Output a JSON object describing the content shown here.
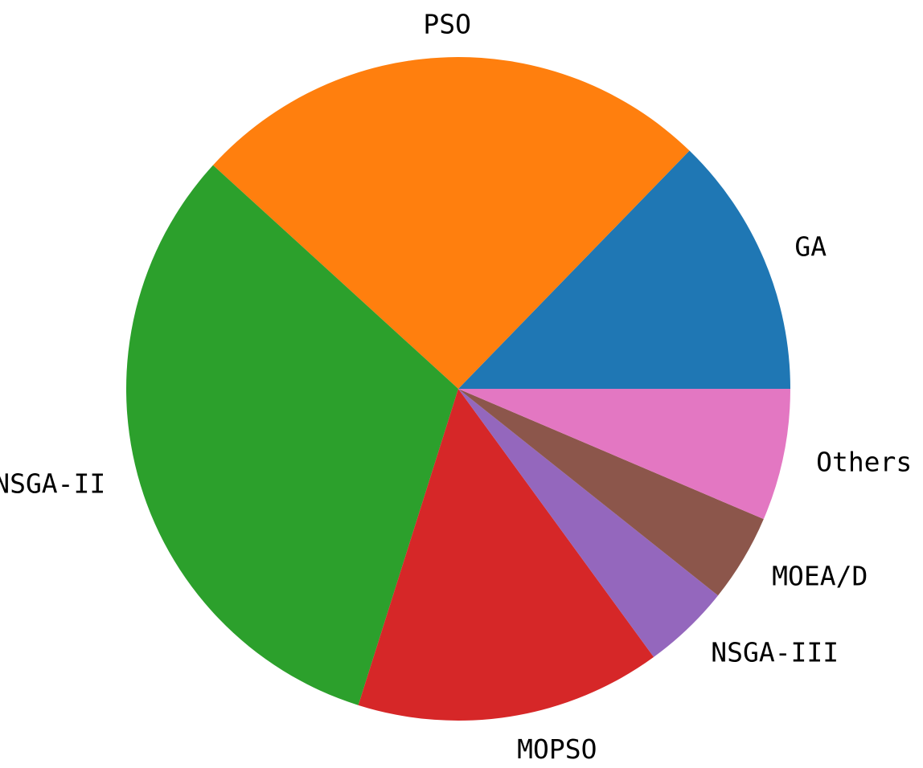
{
  "chart_data": {
    "type": "pie",
    "title": "",
    "start_angle_deg": 0,
    "direction": "counterclockwise",
    "slices": [
      {
        "label": "GA",
        "value": 12.5,
        "color": "#1f77b4"
      },
      {
        "label": "PSO",
        "value": 25.0,
        "color": "#ff7f0e"
      },
      {
        "label": "NSGA-II",
        "value": 31.3,
        "color": "#2ca02c"
      },
      {
        "label": "MOPSO",
        "value": 14.6,
        "color": "#d62728"
      },
      {
        "label": "NSGA-III",
        "value": 4.2,
        "color": "#9467bd"
      },
      {
        "label": "MOEA/D",
        "value": 4.2,
        "color": "#8c564b"
      },
      {
        "label": "Others",
        "value": 6.3,
        "color": "#e377c2"
      }
    ]
  }
}
